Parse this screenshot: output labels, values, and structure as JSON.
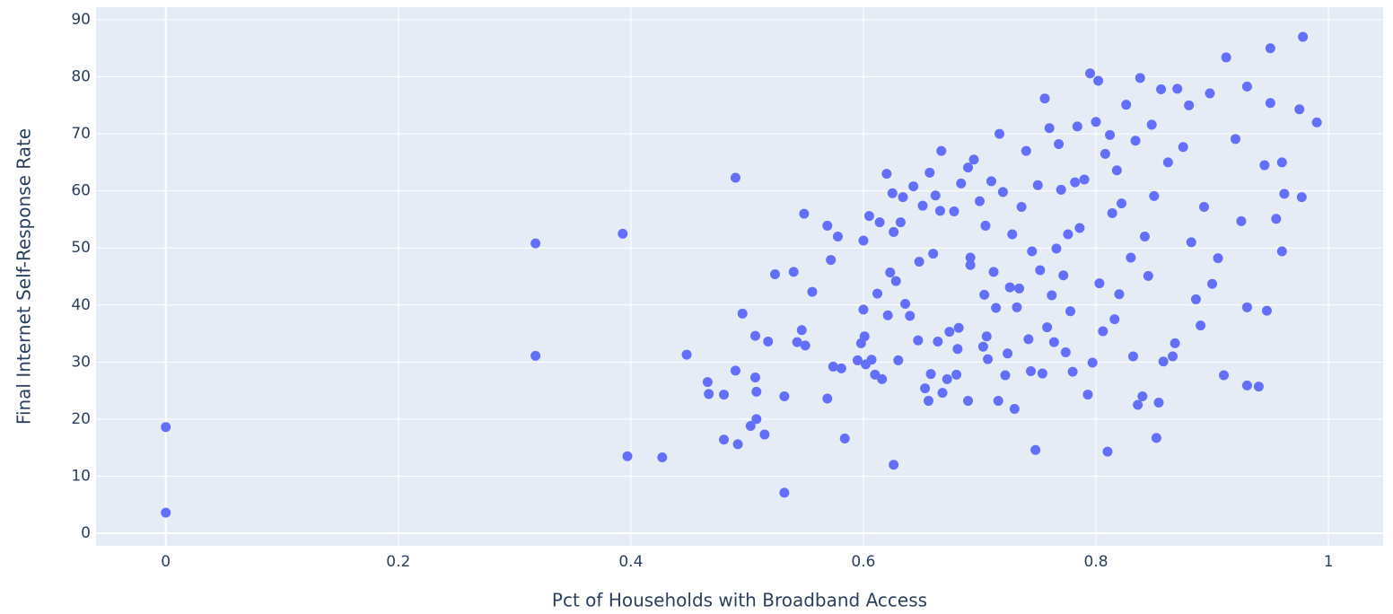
{
  "chart_data": {
    "type": "scatter",
    "xlabel": "Pct of Households with Broadband Access",
    "ylabel": "Final Internet Self-Response Rate",
    "color": "#636efa",
    "xlim": [
      -0.06,
      1.047
    ],
    "ylim": [
      -2.2,
      92.2
    ],
    "xticks": [
      0,
      0.2,
      0.4,
      0.6,
      0.8,
      1
    ],
    "yticks": [
      0,
      10,
      20,
      30,
      40,
      50,
      60,
      70,
      80,
      90
    ],
    "grid": true,
    "x": [
      0,
      0,
      0.318,
      0.318,
      0.393,
      0.397,
      0.427,
      0.448,
      0.466,
      0.467,
      0.48,
      0.48,
      0.49,
      0.49,
      0.492,
      0.496,
      0.503,
      0.507,
      0.507,
      0.508,
      0.508,
      0.515,
      0.518,
      0.524,
      0.532,
      0.532,
      0.54,
      0.543,
      0.547,
      0.549,
      0.55,
      0.556,
      0.569,
      0.569,
      0.572,
      0.574,
      0.578,
      0.581,
      0.584,
      0.595,
      0.598,
      0.6,
      0.6,
      0.601,
      0.602,
      0.605,
      0.607,
      0.61,
      0.612,
      0.614,
      0.616,
      0.62,
      0.621,
      0.623,
      0.625,
      0.626,
      0.626,
      0.628,
      0.63,
      0.632,
      0.634,
      0.636,
      0.64,
      0.643,
      0.647,
      0.648,
      0.651,
      0.653,
      0.656,
      0.657,
      0.658,
      0.66,
      0.662,
      0.664,
      0.666,
      0.667,
      0.668,
      0.672,
      0.674,
      0.678,
      0.68,
      0.681,
      0.682,
      0.684,
      0.69,
      0.69,
      0.692,
      0.692,
      0.695,
      0.7,
      0.703,
      0.704,
      0.705,
      0.706,
      0.707,
      0.71,
      0.712,
      0.714,
      0.716,
      0.717,
      0.72,
      0.722,
      0.724,
      0.726,
      0.728,
      0.73,
      0.732,
      0.734,
      0.736,
      0.74,
      0.742,
      0.744,
      0.745,
      0.748,
      0.75,
      0.752,
      0.754,
      0.756,
      0.758,
      0.76,
      0.762,
      0.764,
      0.766,
      0.768,
      0.77,
      0.772,
      0.774,
      0.776,
      0.778,
      0.78,
      0.782,
      0.784,
      0.786,
      0.79,
      0.793,
      0.795,
      0.797,
      0.8,
      0.802,
      0.803,
      0.806,
      0.808,
      0.81,
      0.812,
      0.814,
      0.816,
      0.818,
      0.82,
      0.822,
      0.826,
      0.83,
      0.832,
      0.834,
      0.836,
      0.838,
      0.84,
      0.842,
      0.845,
      0.848,
      0.85,
      0.852,
      0.854,
      0.856,
      0.858,
      0.862,
      0.866,
      0.868,
      0.87,
      0.875,
      0.88,
      0.882,
      0.886,
      0.89,
      0.893,
      0.898,
      0.9,
      0.905,
      0.91,
      0.912,
      0.92,
      0.925,
      0.93,
      0.93,
      0.93,
      0.94,
      0.945,
      0.947,
      0.95,
      0.95,
      0.955,
      0.96,
      0.96,
      0.962,
      0.975,
      0.977,
      0.978,
      0.99
    ],
    "y": [
      18.6,
      3.6,
      50.8,
      31.1,
      52.5,
      13.5,
      13.3,
      31.3,
      26.5,
      24.4,
      24.3,
      16.4,
      28.5,
      62.3,
      15.6,
      38.5,
      18.8,
      34.6,
      27.3,
      24.8,
      20,
      17.3,
      33.6,
      45.4,
      24,
      7.1,
      45.8,
      33.5,
      35.6,
      56,
      32.9,
      42.3,
      53.9,
      23.6,
      47.9,
      29.2,
      52,
      28.9,
      16.6,
      30.3,
      33.3,
      39.2,
      51.3,
      34.5,
      29.6,
      55.6,
      30.4,
      27.8,
      42,
      54.5,
      27,
      63,
      38.2,
      45.7,
      59.6,
      52.8,
      12,
      44.2,
      30.3,
      54.5,
      58.9,
      40.2,
      38.1,
      60.8,
      33.8,
      47.6,
      57.4,
      25.4,
      23.2,
      63.2,
      27.9,
      49,
      59.2,
      33.6,
      56.5,
      67,
      24.6,
      27,
      35.3,
      56.4,
      27.8,
      32.3,
      36,
      61.3,
      23.2,
      64.1,
      47,
      48.3,
      65.5,
      58.2,
      32.7,
      41.8,
      53.9,
      34.5,
      30.5,
      61.7,
      45.8,
      39.5,
      23.2,
      70,
      59.8,
      27.7,
      31.5,
      43.1,
      52.4,
      21.8,
      39.6,
      42.9,
      57.2,
      67,
      34,
      28.4,
      49.4,
      14.6,
      61,
      46.1,
      28,
      76.2,
      36.1,
      71,
      41.7,
      33.5,
      49.9,
      68.2,
      60.2,
      45.2,
      31.7,
      52.4,
      38.9,
      28.3,
      61.5,
      71.3,
      53.5,
      62,
      24.3,
      80.6,
      29.9,
      72.1,
      79.3,
      43.8,
      35.4,
      66.5,
      14.3,
      69.8,
      56.1,
      37.5,
      63.6,
      41.9,
      57.8,
      75.1,
      48.3,
      31,
      68.8,
      22.5,
      79.8,
      24,
      52,
      45.1,
      71.6,
      59.1,
      16.7,
      22.9,
      77.8,
      30.1,
      65,
      31,
      33.3,
      77.9,
      67.7,
      75,
      51,
      41,
      36.4,
      57.2,
      77.1,
      43.7,
      48.2,
      27.7,
      83.4,
      69.1,
      54.7,
      78.3,
      39.6,
      25.9,
      25.7,
      64.5,
      39,
      75.4,
      85,
      55.1,
      65,
      49.4,
      59.5,
      74.3,
      58.9,
      87,
      72
    ]
  }
}
